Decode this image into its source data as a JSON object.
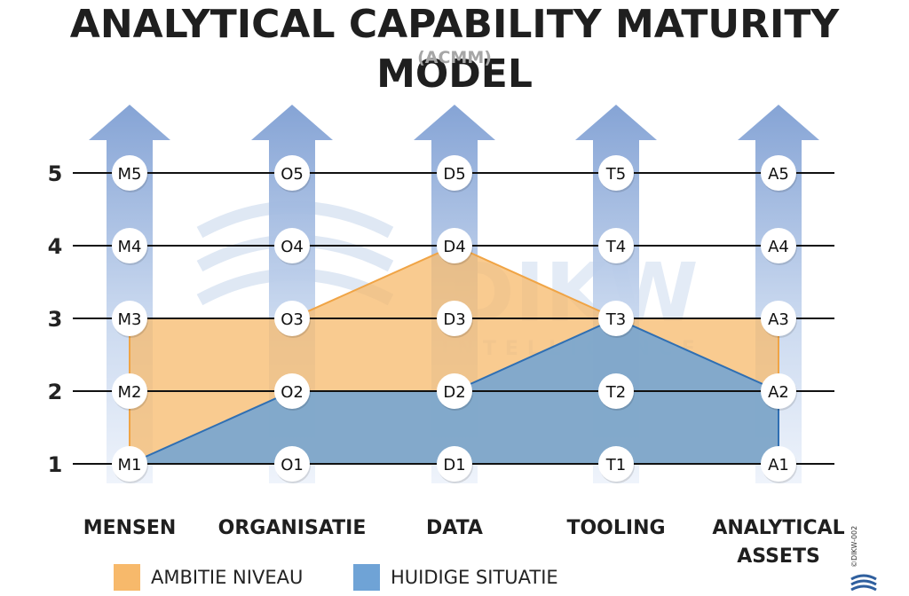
{
  "title": "ANALYTICAL CAPABILITY MATURITY MODEL",
  "subtitle": "(ACMM)",
  "watermark": {
    "brand": "DIKW",
    "tagline": "INTELLIGENCE"
  },
  "copyright": "©DIKW-002",
  "colors": {
    "ambitie": "#f7b96b",
    "huidige": "#6fa3d6",
    "arrow_light": "#c6d6ee",
    "arrow_dark": "#7f9fd3",
    "node": "#ffffff",
    "line": "#111111"
  },
  "chart_data": {
    "type": "area",
    "categories": [
      "MENSEN",
      "ORGANISATIE",
      "DATA",
      "TOOLING",
      "ANALYTICAL\nASSETS"
    ],
    "y_ticks": [
      1,
      2,
      3,
      4,
      5
    ],
    "ylim": [
      1,
      5
    ],
    "level_labels": [
      [
        "M1",
        "M2",
        "M3",
        "M4",
        "M5"
      ],
      [
        "O1",
        "O2",
        "O3",
        "O4",
        "O5"
      ],
      [
        "D1",
        "D2",
        "D3",
        "D4",
        "D5"
      ],
      [
        "T1",
        "T2",
        "T3",
        "T4",
        "T5"
      ],
      [
        "A1",
        "A2",
        "A3",
        "A4",
        "A5"
      ]
    ],
    "series": [
      {
        "name": "AMBITIE NIVEAU",
        "values": [
          3,
          3,
          4,
          3,
          3
        ]
      },
      {
        "name": "HUIDIGE SITUATIE",
        "values": [
          1,
          2,
          2,
          3,
          2
        ]
      }
    ]
  }
}
